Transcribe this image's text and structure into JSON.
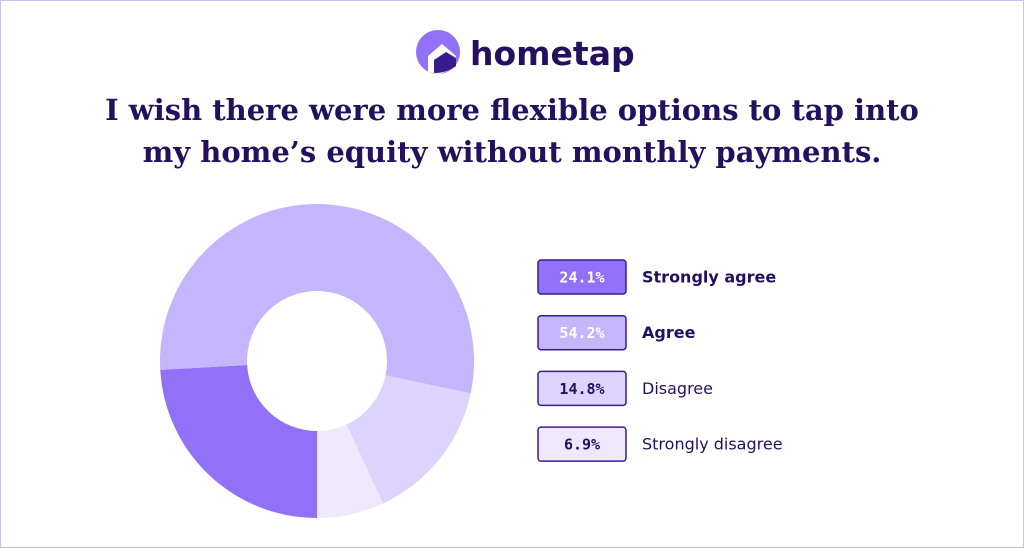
{
  "brand": "hometap",
  "chart_data": {
    "type": "pie",
    "title": [
      "I wish there were more flexible options to tap into",
      "my home’s equity without monthly payments."
    ],
    "categories": [
      "Strongly agree",
      "Agree",
      "Disagree",
      "Strongly disagree"
    ],
    "values": [
      24.1,
      54.2,
      14.8,
      6.9
    ],
    "value_labels": [
      "24.1%",
      "54.2%",
      "14.8%",
      "6.9%"
    ],
    "colors": [
      "#9270f8",
      "#c4b5fd",
      "#ddd4fe",
      "#eee9fe"
    ],
    "donut": true
  }
}
